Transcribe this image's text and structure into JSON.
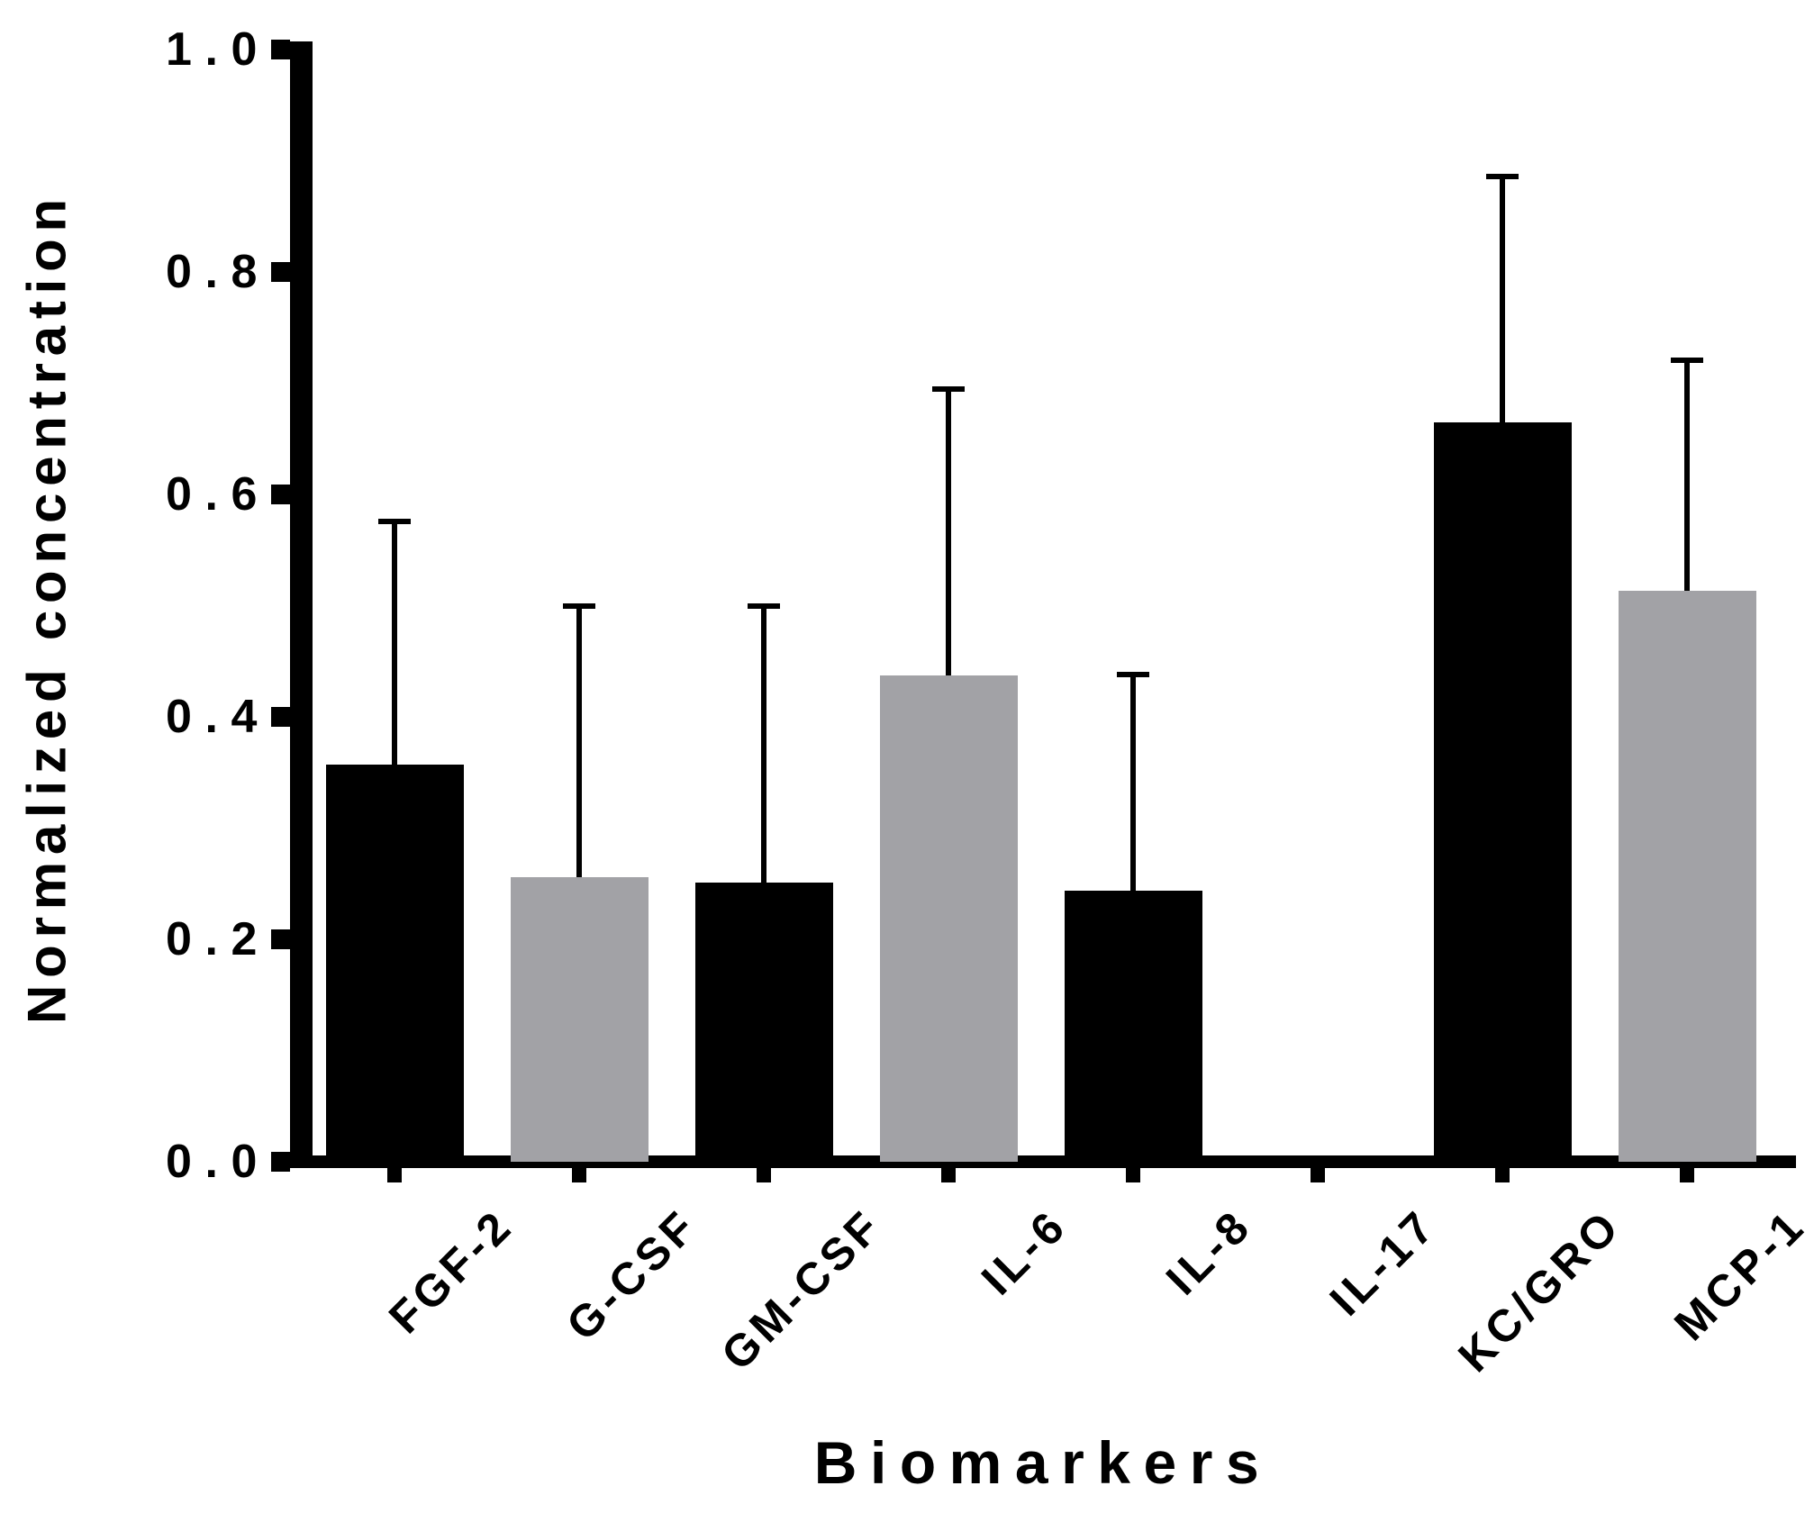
{
  "chart_data": {
    "type": "bar",
    "title": "",
    "xlabel": "Biomarkers",
    "ylabel": "Normalized concentration",
    "categories": [
      "FGF-2",
      "G-CSF",
      "GM-CSF",
      "IL-6",
      "IL-8",
      "IL-17",
      "KC/GRO",
      "MCP-1"
    ],
    "values": [
      0.357,
      0.256,
      0.251,
      0.437,
      0.244,
      0,
      0.665,
      0.513
    ],
    "errors_plus": [
      0.219,
      0.244,
      0.249,
      0.258,
      0.194,
      0,
      0.221,
      0.208
    ],
    "bar_colors": [
      "#000000",
      "#a2a2a6",
      "#000000",
      "#a2a2a6",
      "#000000",
      "#000000",
      "#000000",
      "#a2a2a6"
    ],
    "ylim": [
      0,
      1
    ],
    "ytick_labels": [
      "1.0",
      "0.8",
      "0.6",
      "0.4",
      "0.2",
      "0.0"
    ],
    "grid": false,
    "legend": "none",
    "axis_color": "#000000",
    "error_bar_style": "upper-only-with-cap",
    "x_labels_rotation_deg": 45
  }
}
